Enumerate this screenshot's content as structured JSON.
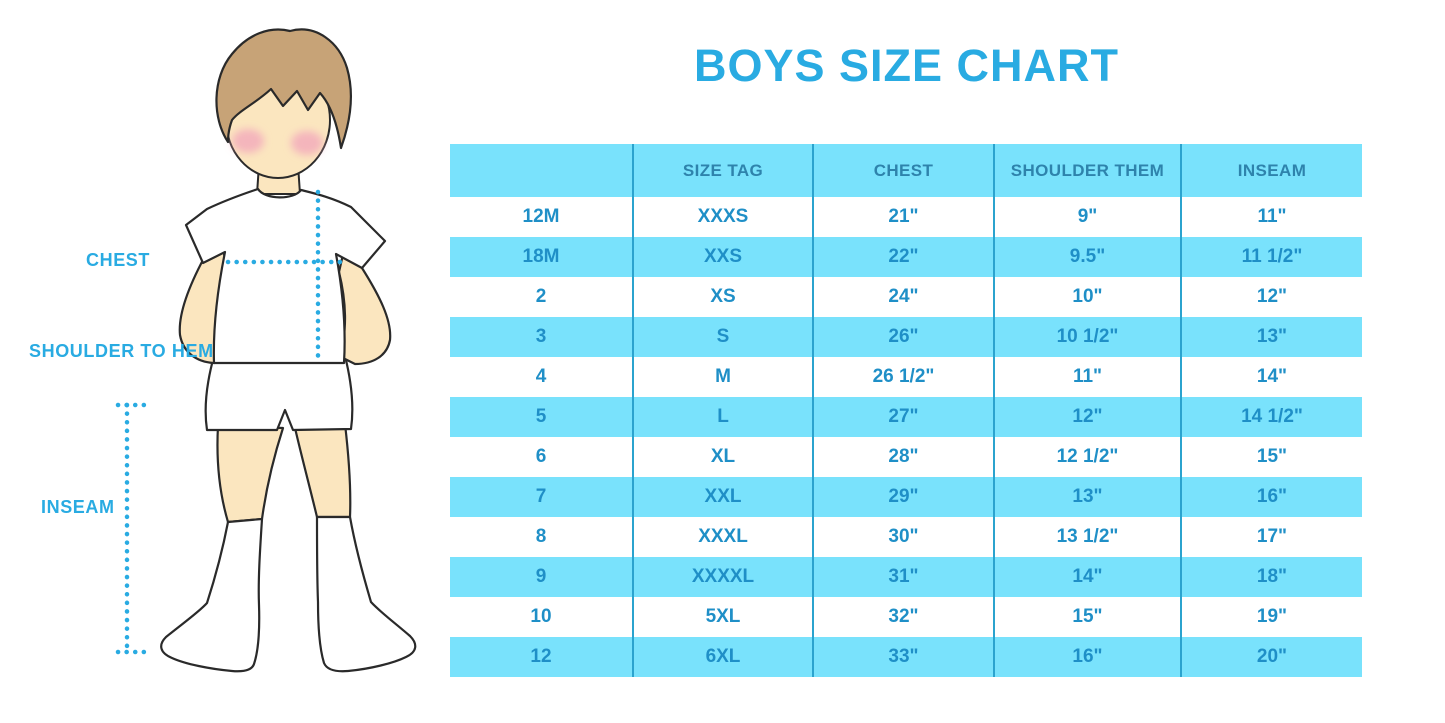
{
  "title": "BOYS SIZE CHART",
  "figure": {
    "labels": {
      "chest": "CHEST",
      "shoulder_to_hem": "SHOULDER TO HEM",
      "inseam": "INSEAM"
    }
  },
  "colors": {
    "accent_blue": "#29ABE2",
    "band_blue": "#79E2FC",
    "divider_blue": "#2BA3CE",
    "header_text": "#2E83AC",
    "cell_text": "#1F8FC7",
    "skin": "#FBE6BF",
    "hair": "#C7A377",
    "blush_pink": "#F2A9BC"
  },
  "chart_data": {
    "type": "table",
    "title": "BOYS SIZE CHART",
    "columns": [
      "",
      "SIZE TAG",
      "CHEST",
      "SHOULDER THEM",
      "INSEAM"
    ],
    "rows": [
      [
        "12M",
        "XXXS",
        "21\"",
        "9\"",
        "11\""
      ],
      [
        "18M",
        "XXS",
        "22\"",
        "9.5\"",
        "11 1/2\""
      ],
      [
        "2",
        "XS",
        "24\"",
        "10\"",
        "12\""
      ],
      [
        "3",
        "S",
        "26\"",
        "10 1/2\"",
        "13\""
      ],
      [
        "4",
        "M",
        "26 1/2\"",
        "11\"",
        "14\""
      ],
      [
        "5",
        "L",
        "27\"",
        "12\"",
        "14 1/2\""
      ],
      [
        "6",
        "XL",
        "28\"",
        "12 1/2\"",
        "15\""
      ],
      [
        "7",
        "XXL",
        "29\"",
        "13\"",
        "16\""
      ],
      [
        "8",
        "XXXL",
        "30\"",
        "13 1/2\"",
        "17\""
      ],
      [
        "9",
        "XXXXL",
        "31\"",
        "14\"",
        "18\""
      ],
      [
        "10",
        "5XL",
        "32\"",
        "15\"",
        "19\""
      ],
      [
        "12",
        "6XL",
        "33\"",
        "16\"",
        "20\""
      ]
    ]
  }
}
